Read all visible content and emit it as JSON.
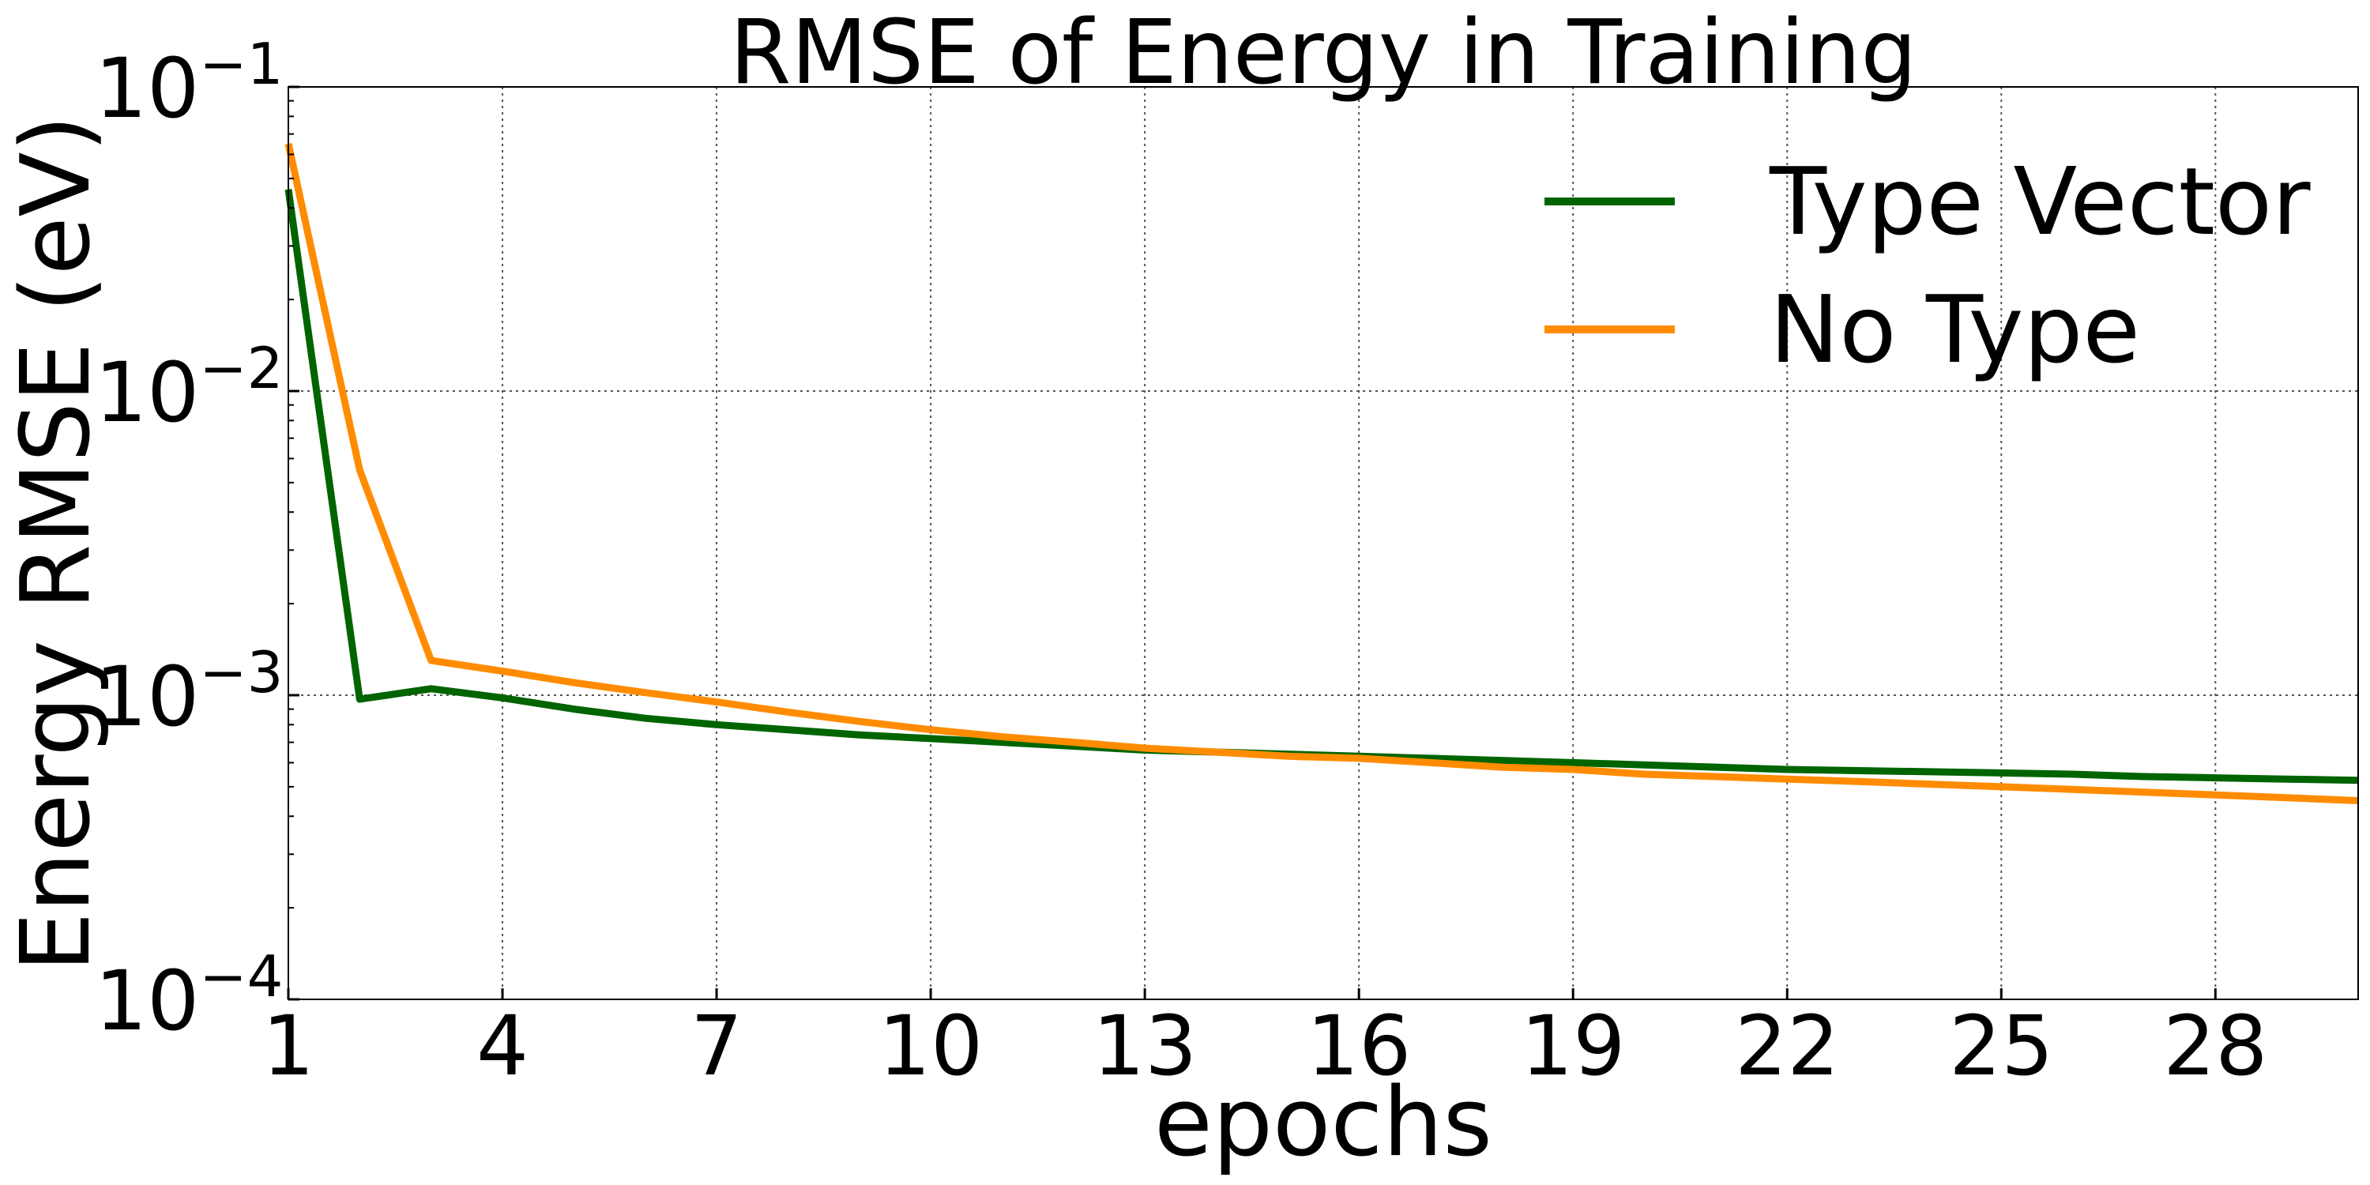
{
  "chart_data": {
    "type": "line",
    "title": "RMSE of Energy in Training",
    "xlabel": "epochs",
    "ylabel": "Energy RMSE (eV)",
    "yscale": "log",
    "xlim": [
      1,
      30
    ],
    "ylim": [
      0.0001,
      0.1
    ],
    "xticks": [
      1,
      4,
      7,
      10,
      13,
      16,
      19,
      22,
      25,
      28
    ],
    "yticks": [
      {
        "value": 0.1,
        "base": "10",
        "exp": "−1"
      },
      {
        "value": 0.01,
        "base": "10",
        "exp": "−2"
      },
      {
        "value": 0.001,
        "base": "10",
        "exp": "−3"
      },
      {
        "value": 0.0001,
        "base": "10",
        "exp": "−4"
      }
    ],
    "grid": true,
    "legend_position": "top-right",
    "x": [
      1,
      2,
      3,
      4,
      5,
      6,
      7,
      8,
      9,
      10,
      11,
      12,
      13,
      14,
      15,
      16,
      17,
      18,
      19,
      20,
      21,
      22,
      23,
      24,
      25,
      26,
      27,
      28,
      29,
      30
    ],
    "series": [
      {
        "name": "Type Vector",
        "color": "#006400",
        "values": [
          0.046,
          0.00097,
          0.00105,
          0.00098,
          0.0009,
          0.00084,
          0.0008,
          0.00077,
          0.00074,
          0.00072,
          0.0007,
          0.00068,
          0.00066,
          0.00065,
          0.00064,
          0.00063,
          0.00062,
          0.00061,
          0.0006,
          0.00059,
          0.00058,
          0.00057,
          0.000565,
          0.00056,
          0.000555,
          0.00055,
          0.00054,
          0.000535,
          0.00053,
          0.000525
        ]
      },
      {
        "name": "No Type",
        "color": "#FF8C00",
        "values": [
          0.065,
          0.0055,
          0.0013,
          0.0012,
          0.0011,
          0.00102,
          0.00095,
          0.00088,
          0.00082,
          0.00077,
          0.00073,
          0.0007,
          0.00067,
          0.00065,
          0.00063,
          0.00062,
          0.0006,
          0.00058,
          0.00057,
          0.00055,
          0.00054,
          0.00053,
          0.00052,
          0.00051,
          0.0005,
          0.00049,
          0.00048,
          0.00047,
          0.00046,
          0.00045
        ]
      }
    ]
  }
}
